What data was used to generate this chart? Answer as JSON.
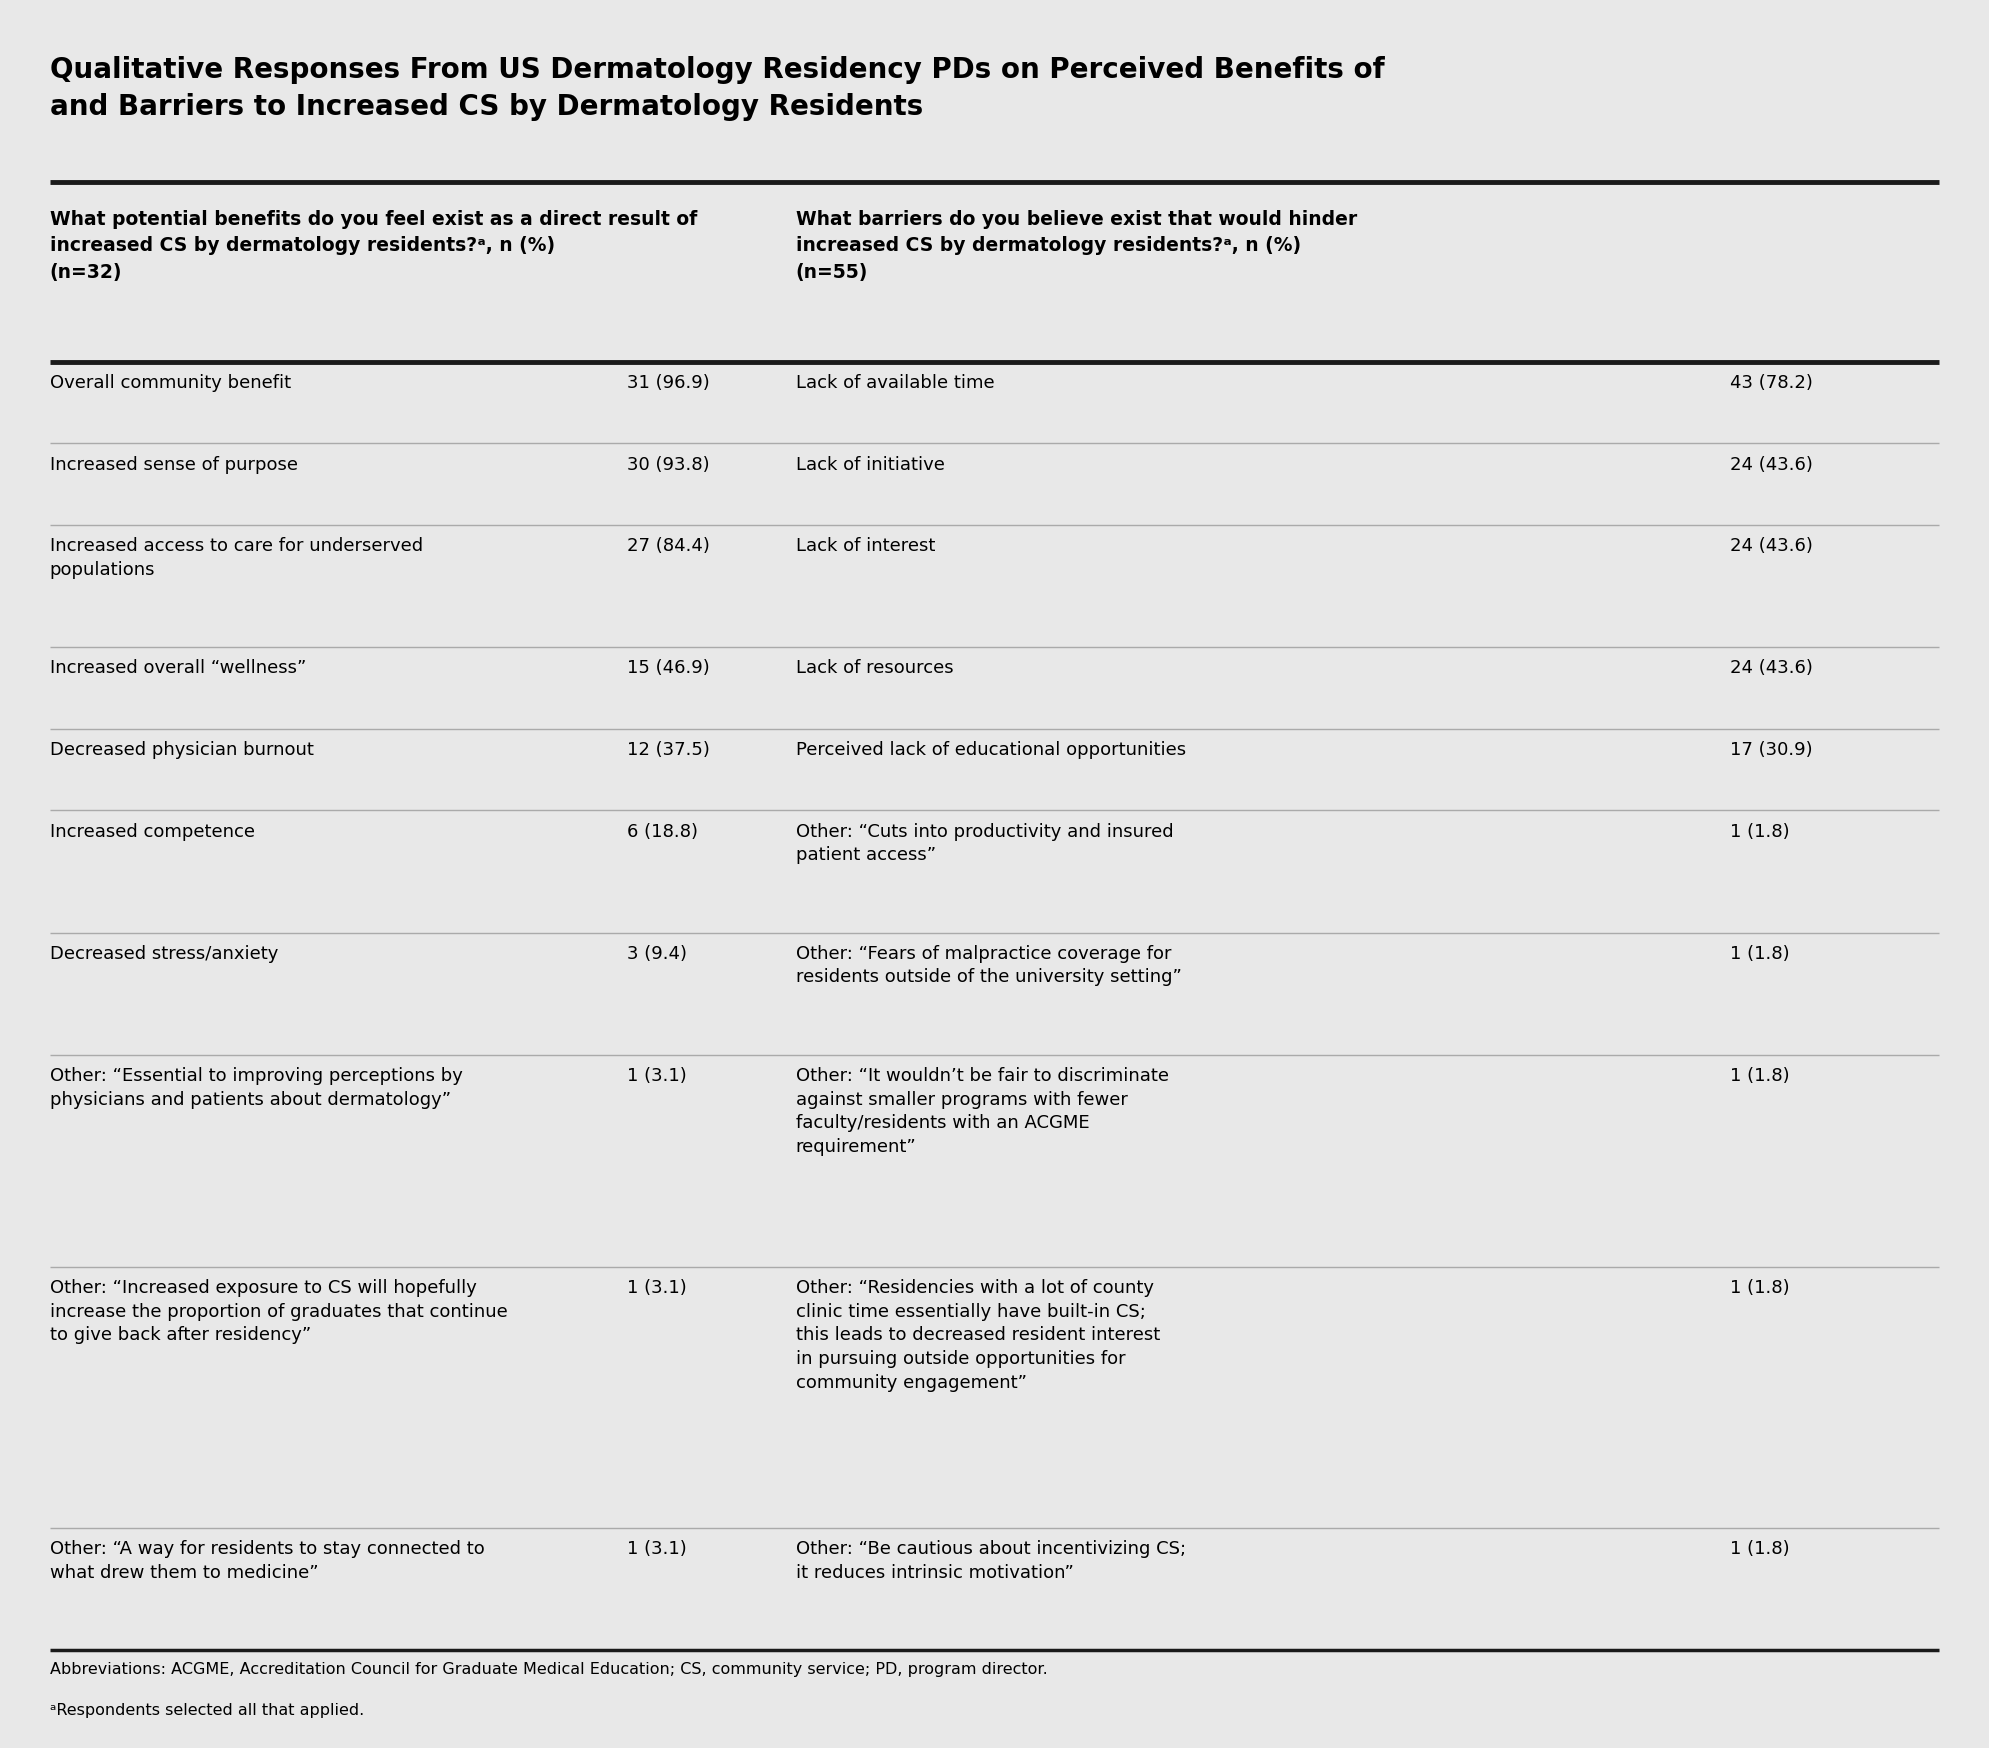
{
  "title": "Qualitative Responses From US Dermatology Residency PDs on Perceived Benefits of\nand Barriers to Increased CS by Dermatology Residents",
  "title_fontsize": 20,
  "background_color": "#e8e8e8",
  "thick_line_color": "#1a1a1a",
  "thin_line_color": "#aaaaaa",
  "col1_header": "What potential benefits do you feel exist as a direct result of\nincreased CS by dermatology residents?ᵃ, n (%)\n(n=32)",
  "col3_header": "What barriers do you believe exist that would hinder\nincreased CS by dermatology residents?ᵃ, n (%)\n(n=55)",
  "benefits": [
    [
      "Overall community benefit",
      "31 (96.9)"
    ],
    [
      "Increased sense of purpose",
      "30 (93.8)"
    ],
    [
      "Increased access to care for underserved\npopulations",
      "27 (84.4)"
    ],
    [
      "Increased overall “wellness”",
      "15 (46.9)"
    ],
    [
      "Decreased physician burnout",
      "12 (37.5)"
    ],
    [
      "Increased competence",
      "6 (18.8)"
    ],
    [
      "Decreased stress/anxiety",
      "3 (9.4)"
    ],
    [
      "Other: “Essential to improving perceptions by\nphysicians and patients about dermatology”",
      "1 (3.1)"
    ],
    [
      "Other: “Increased exposure to CS will hopefully\nincrease the proportion of graduates that continue\nto give back after residency”",
      "1 (3.1)"
    ],
    [
      "Other: “A way for residents to stay connected to\nwhat drew them to medicine”",
      "1 (3.1)"
    ]
  ],
  "barriers": [
    [
      "Lack of available time",
      "43 (78.2)"
    ],
    [
      "Lack of initiative",
      "24 (43.6)"
    ],
    [
      "Lack of interest",
      "24 (43.6)"
    ],
    [
      "Lack of resources",
      "24 (43.6)"
    ],
    [
      "Perceived lack of educational opportunities",
      "17 (30.9)"
    ],
    [
      "Other: “Cuts into productivity and insured\npatient access”",
      "1 (1.8)"
    ],
    [
      "Other: “Fears of malpractice coverage for\nresidents outside of the university setting”",
      "1 (1.8)"
    ],
    [
      "Other: “It wouldn’t be fair to discriminate\nagainst smaller programs with fewer\nfaculty/residents with an ACGME\nrequirement”",
      "1 (1.8)"
    ],
    [
      "Other: “Residencies with a lot of county\nclinic time essentially have built-in CS;\nthis leads to decreased resident interest\nin pursuing outside opportunities for\ncommunity engagement”",
      "1 (1.8)"
    ],
    [
      "Other: “Be cautious about incentivizing CS;\nit reduces intrinsic motivation”",
      "1 (1.8)"
    ]
  ],
  "footnote1": "Abbreviations: ACGME, Accreditation Council for Graduate Medical Education; CS, community service; PD, program director.",
  "footnote2": "ᵃRespondents selected all that applied."
}
